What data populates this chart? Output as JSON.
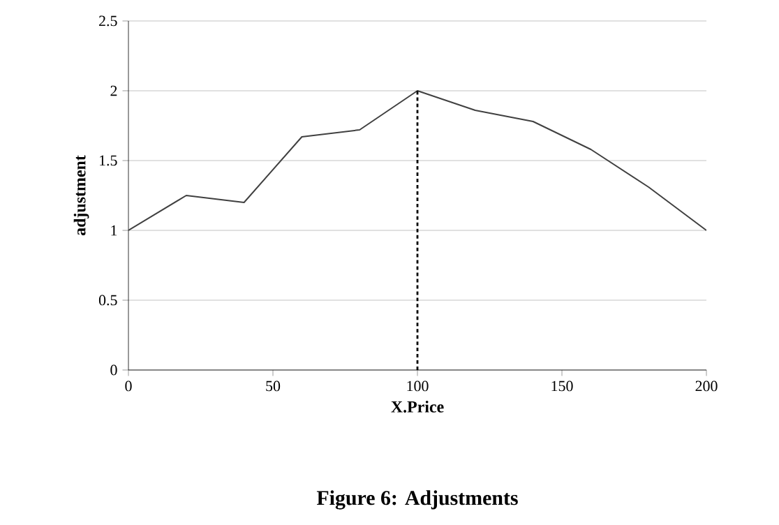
{
  "chart_data": {
    "type": "line",
    "title": "Figure 6: Adjustments",
    "xlabel": "X.Price",
    "ylabel": "adjustment",
    "xlim": [
      0,
      200
    ],
    "ylim": [
      0,
      2.5
    ],
    "xticks": [
      0,
      50,
      100,
      150,
      200
    ],
    "yticks": [
      0,
      0.5,
      1,
      1.5,
      2,
      2.5
    ],
    "grid": "y",
    "marker": "none",
    "series": [
      {
        "color": "#404040",
        "x": [
          0,
          20,
          40,
          60,
          80,
          100,
          120,
          140,
          160,
          180,
          200
        ],
        "values": [
          1.0,
          1.25,
          1.2,
          1.67,
          1.72,
          2.0,
          1.86,
          1.78,
          1.58,
          1.31,
          1.0
        ]
      },
      {
        "type": "line",
        "line_style": "dotted",
        "color": "#000000",
        "x": [
          100,
          100
        ],
        "values": [
          0,
          2.0
        ]
      }
    ]
  }
}
